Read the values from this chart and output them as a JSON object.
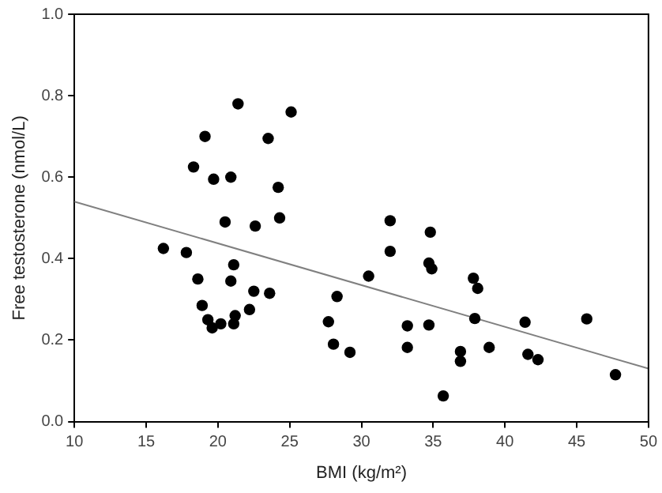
{
  "chart_data": {
    "type": "scatter",
    "xlabel": "BMI (kg/m²)",
    "ylabel": "Free testosterone (nmol/L)",
    "xlim": [
      10,
      50
    ],
    "xticks": [
      10,
      15,
      20,
      25,
      30,
      35,
      40,
      45,
      50
    ],
    "ylim": [
      0,
      1
    ],
    "yticks": [
      {
        "value": 0,
        "label": "0.0"
      },
      {
        "value": 0.2,
        "label": "0.2"
      },
      {
        "value": 0.4,
        "label": "0.4"
      },
      {
        "value": 0.6,
        "label": "0.6"
      },
      {
        "value": 0.8,
        "label": "0.8"
      },
      {
        "value": 1,
        "label": "1.0"
      }
    ],
    "grid": false,
    "legend": false,
    "marker": "circle",
    "series": [
      {
        "color": "#000000",
        "x": [
          16.2,
          17.8,
          18.3,
          18.6,
          18.9,
          19.1,
          19.3,
          19.6,
          19.7,
          20.2,
          20.5,
          20.9,
          20.9,
          21.1,
          21.1,
          21.2,
          21.4,
          22.2,
          22.5,
          22.6,
          23.5,
          23.6,
          24.2,
          24.3,
          25.1,
          27.7,
          28.3,
          28.05,
          29.2,
          30.5,
          32.0,
          32.0,
          33.2,
          33.2,
          34.7,
          34.8,
          34.7,
          34.9,
          35.7,
          36.9,
          36.9,
          37.8,
          38.1,
          37.9,
          38.9,
          41.4,
          41.6,
          42.3,
          45.7,
          47.7
        ],
        "values": [
          0.425,
          0.415,
          0.625,
          0.35,
          0.285,
          0.7,
          0.25,
          0.23,
          0.595,
          0.24,
          0.49,
          0.6,
          0.345,
          0.385,
          0.24,
          0.26,
          0.78,
          0.275,
          0.32,
          0.48,
          0.695,
          0.315,
          0.575,
          0.5,
          0.76,
          0.245,
          0.307,
          0.19,
          0.17,
          0.357,
          0.493,
          0.418,
          0.235,
          0.182,
          0.237,
          0.465,
          0.389,
          0.375,
          0.063,
          0.172,
          0.148,
          0.352,
          0.327,
          0.253,
          0.182,
          0.244,
          0.165,
          0.152,
          0.252,
          0.115
        ]
      },
      {
        "type": "line",
        "color": "#808080",
        "marker": "none",
        "x": [
          10,
          50
        ],
        "values": [
          0.54,
          0.13
        ]
      }
    ]
  }
}
